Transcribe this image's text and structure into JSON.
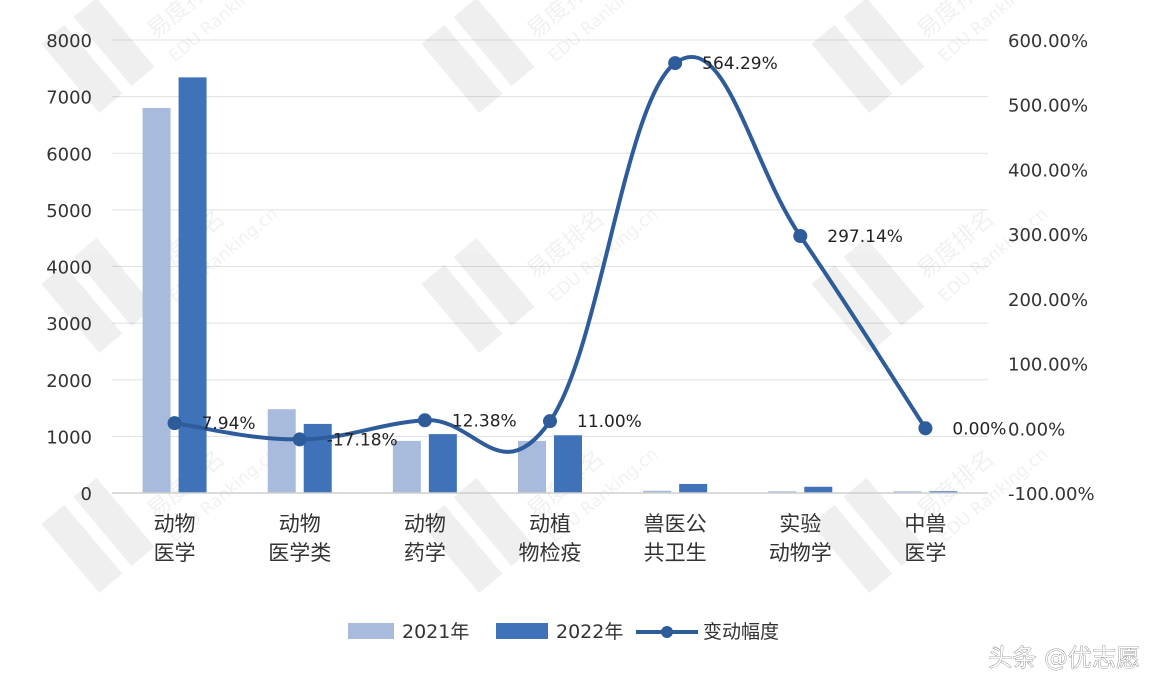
{
  "chart_data": {
    "type": "bar",
    "categories": [
      [
        "动物",
        "医学"
      ],
      [
        "动物",
        "医学类"
      ],
      [
        "动物",
        "药学"
      ],
      [
        "动植",
        "物检疫"
      ],
      [
        "兽医公",
        "共卫生"
      ],
      [
        "实验",
        "动物学"
      ],
      [
        "中兽",
        "医学"
      ]
    ],
    "series": [
      {
        "name": "2021年",
        "type": "bar",
        "axis": "left",
        "values": [
          6800,
          1480,
          920,
          920,
          40,
          30,
          30
        ]
      },
      {
        "name": "2022年",
        "type": "bar",
        "axis": "left",
        "values": [
          7340,
          1220,
          1040,
          1020,
          160,
          110,
          30
        ]
      },
      {
        "name": "变动幅度",
        "type": "line",
        "axis": "right",
        "values": [
          7.94,
          -17.18,
          12.38,
          11.0,
          564.29,
          297.14,
          0.0
        ],
        "labels": [
          "7.94%",
          "-17.18%",
          "12.38%",
          "11.00%",
          "564.29%",
          "297.14%",
          "0.00%"
        ]
      }
    ],
    "left_axis": {
      "ylim": [
        0,
        8000
      ],
      "ticks": [
        "0",
        "1000",
        "2000",
        "3000",
        "4000",
        "5000",
        "6000",
        "7000",
        "8000"
      ]
    },
    "right_axis": {
      "ylim": [
        -100,
        600
      ],
      "ticks": [
        "-100.00%",
        "0.00%",
        "100.00%",
        "200.00%",
        "300.00%",
        "400.00%",
        "500.00%",
        "600.00%"
      ]
    },
    "legend_position": "bottom",
    "grid": true,
    "colors": {
      "s2021": "#a9bbdc",
      "s2022": "#3f72b9",
      "line": "#2e5c9a",
      "grid": "#e0e0e0"
    }
  },
  "watermark": {
    "brand": "易度排名",
    "site": "EDU Ranking.cn",
    "credit": "头条 @优志愿"
  }
}
